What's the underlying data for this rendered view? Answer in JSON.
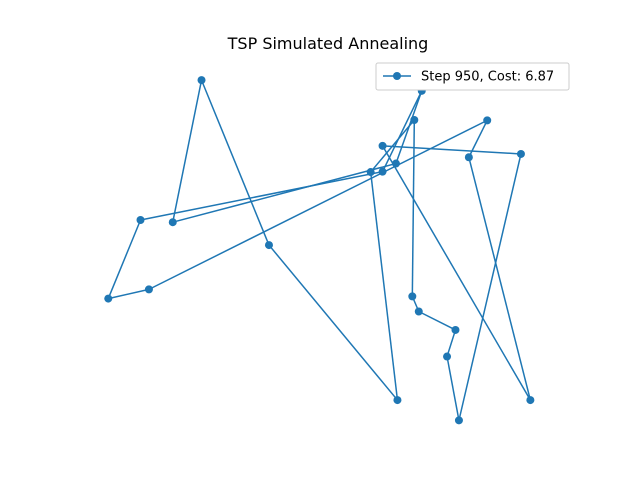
{
  "chart_data": {
    "type": "line",
    "title": "TSP Simulated Annealing",
    "xlabel": "",
    "ylabel": "",
    "axes_visible": false,
    "grid": false,
    "legend_position": "upper right",
    "xlim": [
      0.0,
      1.0
    ],
    "ylim": [
      0.0,
      1.0
    ],
    "colors": {
      "route": "#1f77b4"
    },
    "series": [
      {
        "name": "Step 950, Cost: 6.87",
        "marker": "circle",
        "points": [
          [
            0.245,
            0.94
          ],
          [
            0.381,
            0.493
          ],
          [
            0.64,
            0.073
          ],
          [
            0.586,
            0.691
          ],
          [
            0.674,
            0.832
          ],
          [
            0.67,
            0.354
          ],
          [
            0.683,
            0.313
          ],
          [
            0.757,
            0.263
          ],
          [
            0.74,
            0.191
          ],
          [
            0.764,
            0.018
          ],
          [
            0.889,
            0.74
          ],
          [
            0.61,
            0.762
          ],
          [
            0.908,
            0.073
          ],
          [
            0.784,
            0.731
          ],
          [
            0.821,
            0.831
          ],
          [
            0.139,
            0.373
          ],
          [
            0.057,
            0.348
          ],
          [
            0.122,
            0.561
          ],
          [
            0.61,
            0.692
          ],
          [
            0.689,
            0.911
          ],
          [
            0.637,
            0.714
          ],
          [
            0.187,
            0.555
          ],
          [
            0.245,
            0.94
          ]
        ]
      }
    ]
  }
}
